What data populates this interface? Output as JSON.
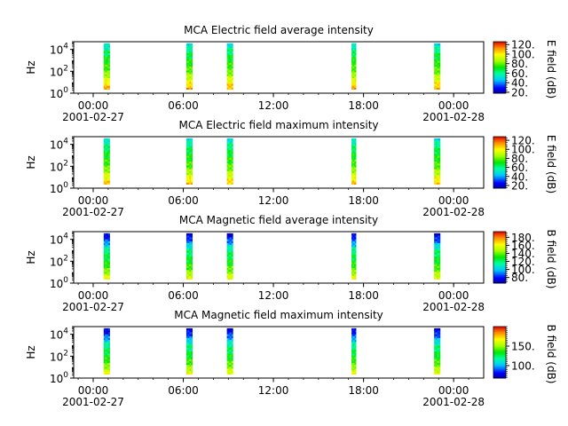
{
  "chart_data": [
    {
      "type": "heatmap",
      "title": "MCA  Electric field average intensity",
      "ylabel": "Hz",
      "ylim_log10": [
        0,
        4.7
      ],
      "yticks": [
        {
          "base": "10",
          "exp": "0",
          "value": 1
        },
        {
          "base": "10",
          "exp": "2",
          "value": 100
        },
        {
          "base": "10",
          "exp": "4",
          "value": 10000
        }
      ],
      "x_range_hours": [
        -1.3,
        26.0
      ],
      "xticks": [
        {
          "hour": 0,
          "label": "00:00",
          "date": "2001-02-27"
        },
        {
          "hour": 6,
          "label": "06:00",
          "date": ""
        },
        {
          "hour": 12,
          "label": "12:00",
          "date": ""
        },
        {
          "hour": 18,
          "label": "18:00",
          "date": ""
        },
        {
          "hour": 24,
          "label": "00:00",
          "date": "2001-02-28"
        }
      ],
      "colorbar": {
        "label": "E field (dB)",
        "range": [
          18,
          126
        ],
        "ticks": [
          "20.",
          "40.",
          "60.",
          "80.",
          "100.",
          "120."
        ],
        "tick_values": [
          20,
          40,
          60,
          80,
          100,
          120
        ]
      },
      "data_bands_hours": [
        [
          0.7,
          1.1
        ],
        [
          6.2,
          6.6
        ],
        [
          8.9,
          9.3
        ],
        [
          17.2,
          17.5
        ],
        [
          22.7,
          23.1
        ]
      ],
      "intensity_profile": {
        "log10_freq": [
          0.4,
          1.2,
          2.0,
          3.0,
          3.9,
          4.5
        ],
        "value": [
          110,
          95,
          80,
          72,
          62,
          50
        ]
      }
    },
    {
      "type": "heatmap",
      "title": "MCA  Electric field maximum intensity",
      "ylabel": "Hz",
      "ylim_log10": [
        0,
        4.7
      ],
      "yticks": [
        {
          "base": "10",
          "exp": "0",
          "value": 1
        },
        {
          "base": "10",
          "exp": "2",
          "value": 100
        },
        {
          "base": "10",
          "exp": "4",
          "value": 10000
        }
      ],
      "x_range_hours": [
        -1.3,
        26.0
      ],
      "xticks": [
        {
          "hour": 0,
          "label": "00:00",
          "date": "2001-02-27"
        },
        {
          "hour": 6,
          "label": "06:00",
          "date": ""
        },
        {
          "hour": 12,
          "label": "12:00",
          "date": ""
        },
        {
          "hour": 18,
          "label": "18:00",
          "date": ""
        },
        {
          "hour": 24,
          "label": "00:00",
          "date": "2001-02-28"
        }
      ],
      "colorbar": {
        "label": "E field (dB)",
        "range": [
          14,
          128
        ],
        "ticks": [
          "20.",
          "40.",
          "60.",
          "80.",
          "100.",
          "120."
        ],
        "tick_values": [
          20,
          40,
          60,
          80,
          100,
          120
        ]
      },
      "data_bands_hours": [
        [
          0.7,
          1.1
        ],
        [
          6.2,
          6.6
        ],
        [
          8.9,
          9.3
        ],
        [
          17.2,
          17.5
        ],
        [
          22.7,
          23.1
        ]
      ],
      "intensity_profile": {
        "log10_freq": [
          0.4,
          1.2,
          2.0,
          3.0,
          3.9,
          4.5
        ],
        "value": [
          108,
          92,
          78,
          70,
          60,
          48
        ]
      }
    },
    {
      "type": "heatmap",
      "title": "MCA  Magnetic field average intensity",
      "ylabel": "Hz",
      "ylim_log10": [
        0,
        4.7
      ],
      "yticks": [
        {
          "base": "10",
          "exp": "0",
          "value": 1
        },
        {
          "base": "10",
          "exp": "2",
          "value": 100
        },
        {
          "base": "10",
          "exp": "4",
          "value": 10000
        }
      ],
      "x_range_hours": [
        -1.3,
        26.0
      ],
      "xticks": [
        {
          "hour": 0,
          "label": "00:00",
          "date": "2001-02-27"
        },
        {
          "hour": 6,
          "label": "06:00",
          "date": ""
        },
        {
          "hour": 12,
          "label": "12:00",
          "date": ""
        },
        {
          "hour": 18,
          "label": "18:00",
          "date": ""
        },
        {
          "hour": 24,
          "label": "00:00",
          "date": "2001-02-28"
        }
      ],
      "colorbar": {
        "label": "B field (dB)",
        "range": [
          66,
          194
        ],
        "ticks": [
          "80.",
          "100.",
          "120.",
          "140.",
          "160.",
          "180."
        ],
        "tick_values": [
          80,
          100,
          120,
          140,
          160,
          180
        ]
      },
      "data_bands_hours": [
        [
          0.7,
          1.1
        ],
        [
          6.2,
          6.6
        ],
        [
          8.9,
          9.3
        ],
        [
          17.2,
          17.5
        ],
        [
          22.7,
          23.1
        ]
      ],
      "intensity_profile": {
        "log10_freq": [
          0.4,
          1.2,
          2.0,
          3.0,
          3.8,
          4.5
        ],
        "value": [
          160,
          140,
          128,
          118,
          90,
          72
        ]
      }
    },
    {
      "type": "heatmap",
      "title": "MCA  Magnetic field maximum intensity",
      "ylabel": "Hz",
      "ylim_log10": [
        0,
        4.7
      ],
      "yticks": [
        {
          "base": "10",
          "exp": "0",
          "value": 1
        },
        {
          "base": "10",
          "exp": "2",
          "value": 100
        },
        {
          "base": "10",
          "exp": "4",
          "value": 10000
        }
      ],
      "x_range_hours": [
        -1.3,
        26.0
      ],
      "xticks": [
        {
          "hour": 0,
          "label": "00:00",
          "date": "2001-02-27"
        },
        {
          "hour": 6,
          "label": "06:00",
          "date": ""
        },
        {
          "hour": 12,
          "label": "12:00",
          "date": ""
        },
        {
          "hour": 18,
          "label": "18:00",
          "date": ""
        },
        {
          "hour": 24,
          "label": "00:00",
          "date": "2001-02-28"
        }
      ],
      "colorbar": {
        "label": "B field (dB)",
        "range": [
          68,
          200
        ],
        "ticks": [
          "100.",
          "150."
        ],
        "tick_values": [
          100,
          150
        ]
      },
      "data_bands_hours": [
        [
          0.7,
          1.1
        ],
        [
          6.2,
          6.6
        ],
        [
          8.9,
          9.3
        ],
        [
          17.2,
          17.5
        ],
        [
          22.7,
          23.1
        ]
      ],
      "intensity_profile": {
        "log10_freq": [
          0.4,
          1.2,
          2.0,
          3.0,
          3.8,
          4.5
        ],
        "value": [
          165,
          145,
          132,
          120,
          92,
          74
        ]
      }
    }
  ]
}
